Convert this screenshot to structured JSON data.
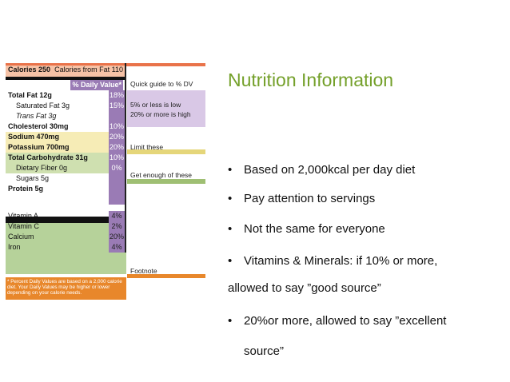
{
  "slide": {
    "title": "Nutrition Information",
    "bullets": [
      "Based on 2,000kcal per day diet",
      "Pay attention to servings",
      "Not the same for everyone",
      "Vitamins & Minerals: if 10% or more,",
      "allowed to say ”good source”",
      "20%or more, allowed to say ”excellent",
      "source”"
    ],
    "bullet_glyph": "•"
  },
  "label": {
    "calories": "Calories 250",
    "calories_fat": "Calories from Fat 110",
    "daily_value_header": "% Daily Value*",
    "quick_guide": "Quick guide to % DV",
    "rows": [
      {
        "name": "Total Fat 12g",
        "pct": "18%"
      },
      {
        "name": "Saturated Fat 3g",
        "pct": "15%"
      },
      {
        "name": "Trans Fat 3g",
        "pct": ""
      },
      {
        "name": "Cholesterol 30mg",
        "pct": "10%"
      },
      {
        "name": "Sodium 470mg",
        "pct": "20%"
      },
      {
        "name": "Potassium 700mg",
        "pct": "20%"
      },
      {
        "name": "Total Carbohydrate 31g",
        "pct": "10%"
      },
      {
        "name": "Dietary Fiber 0g",
        "pct": "0%"
      },
      {
        "name": "Sugars 5g",
        "pct": ""
      },
      {
        "name": "Protein 5g",
        "pct": ""
      },
      {
        "name": "Vitamin A",
        "pct": "4%"
      },
      {
        "name": "Vitamin C",
        "pct": "2%"
      },
      {
        "name": "Calcium",
        "pct": "20%"
      },
      {
        "name": "Iron",
        "pct": "4%"
      }
    ],
    "guide_low": "5% or less is low",
    "guide_high": "20% or more is high",
    "limit_these": "Limit these",
    "get_enough": "Get enough of these",
    "footnote_label": "Footnote",
    "footnote_text": "* Percent Daily Values are based on a 2,000 calorie diet. Your Daily Values may be higher or lower depending on your calorie needs.",
    "colors": {
      "calories_band": "#e9734a",
      "pct_column": "#9a7bb5",
      "limit_band": "#f1e29a",
      "enough_band": "#a7c27a",
      "guide_band": "#d9c8e6",
      "footnote_band": "#e8872b"
    }
  }
}
